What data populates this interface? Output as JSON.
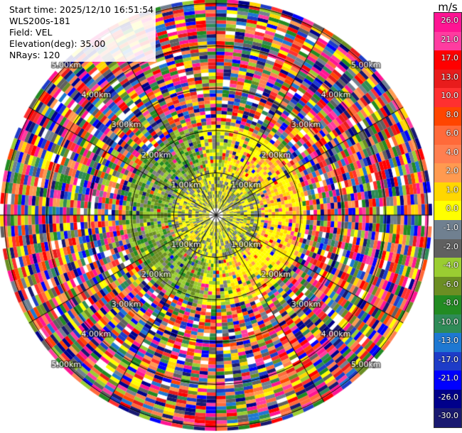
{
  "info": {
    "start_time": "Start time: 2025/12/10 16:51:54",
    "site": "WLS200s-181",
    "field": "Field: VEL",
    "elevation": "Elevation(deg): 35.00",
    "nrays": "NRays: 120"
  },
  "colorbar": {
    "unit": "m/s",
    "labels": [
      "26.0",
      "21.0",
      "17.0",
      "13.0",
      "10.0",
      "8.0",
      "6.0",
      "4.0",
      "2.0",
      "1.0",
      "0.0",
      "-1.0",
      "-2.0",
      "-4.0",
      "-6.0",
      "-8.0",
      "-10.0",
      "-13.0",
      "-17.0",
      "-21.0",
      "-26.0",
      "-30.0"
    ],
    "colors": [
      "#ff1493",
      "#ff3ca0",
      "#ff0000",
      "#e81c1c",
      "#ff3030",
      "#ff4500",
      "#ff6a3a",
      "#ff7f50",
      "#ff9a50",
      "#ffd700",
      "#ffff00",
      "#708090",
      "#606060",
      "#9acd32",
      "#6b8e23",
      "#228b22",
      "#2e8b57",
      "#1e78d2",
      "#1e3cc8",
      "#0000ff",
      "#00008b",
      "#191970"
    ]
  },
  "chart_data": {
    "type": "ppi",
    "field": "VEL",
    "unit": "m/s",
    "elevation_deg": 35.0,
    "n_rays": 120,
    "ring_labels": [
      "1.00km",
      "2.00km",
      "3.00km",
      "4.00km",
      "5.00km"
    ],
    "ring_ranges_km": [
      1,
      2,
      3,
      4,
      5
    ],
    "max_range_km": 5.1,
    "grid": true,
    "pattern": "center (0-1 km) mixed gray/yellow/green near-zero velocities; 1-2 km green on west side and yellow/orange on east side; beyond ~2 km noisy multicolor (random) velocities across full -30 to 26 m/s range"
  }
}
